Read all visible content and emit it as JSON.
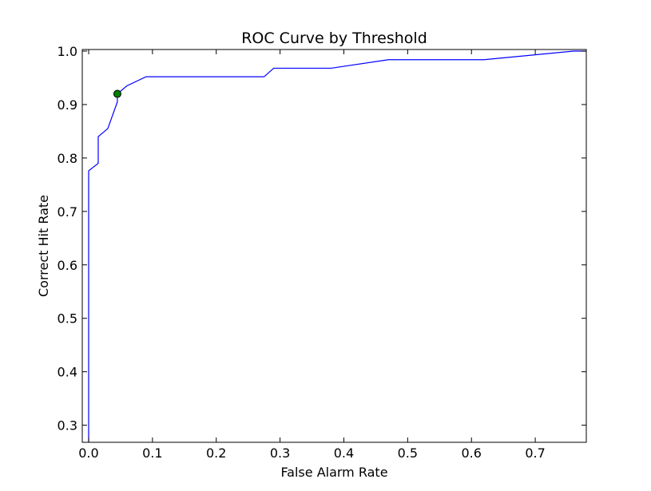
{
  "chart_data": {
    "type": "line",
    "title": "ROC Curve by Threshold",
    "xlabel": "False Alarm Rate",
    "ylabel": "Correct Hit Rate",
    "xlim": [
      -0.01,
      0.78
    ],
    "ylim": [
      0.268,
      1.003
    ],
    "x_ticks": [
      0.0,
      0.1,
      0.2,
      0.3,
      0.4,
      0.5,
      0.6,
      0.7
    ],
    "x_tick_labels": [
      "0.0",
      "0.1",
      "0.2",
      "0.3",
      "0.4",
      "0.5",
      "0.6",
      "0.7"
    ],
    "y_ticks": [
      0.3,
      0.4,
      0.5,
      0.6,
      0.7,
      0.8,
      0.9,
      1.0
    ],
    "y_tick_labels": [
      "0.3",
      "0.4",
      "0.5",
      "0.6",
      "0.7",
      "0.8",
      "0.9",
      "1.0"
    ],
    "grid": false,
    "series": [
      {
        "color": "#0000ff",
        "x": [
          0.0,
          0.0,
          0.015,
          0.015,
          0.03,
          0.045,
          0.045,
          0.06,
          0.09,
          0.27,
          0.275,
          0.29,
          0.38,
          0.47,
          0.62,
          0.76,
          0.78
        ],
        "y": [
          0.268,
          0.776,
          0.79,
          0.84,
          0.855,
          0.905,
          0.92,
          0.935,
          0.952,
          0.952,
          0.952,
          0.968,
          0.968,
          0.984,
          0.984,
          1.0,
          1.0
        ]
      }
    ],
    "highlight_point": {
      "x": 0.045,
      "y": 0.92,
      "color": "#008000"
    }
  }
}
